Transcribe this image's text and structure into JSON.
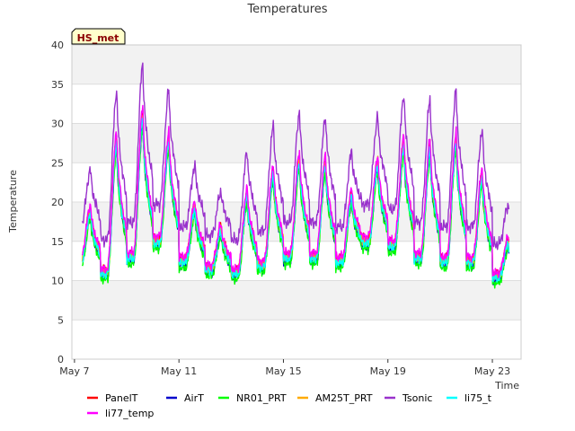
{
  "chart_data": {
    "type": "line",
    "title": "Temperatures",
    "xlabel": "Time",
    "ylabel": "Temperature",
    "badge": "HS_met",
    "ylim": [
      0,
      40
    ],
    "yticks": [
      0,
      5,
      10,
      15,
      20,
      25,
      30,
      35,
      40
    ],
    "xlim_days": [
      6.9,
      24.1
    ],
    "xticks": [
      {
        "label": "May 7",
        "day": 7
      },
      {
        "label": "May 11",
        "day": 11
      },
      {
        "label": "May 15",
        "day": 15
      },
      {
        "label": "May 19",
        "day": 19
      },
      {
        "label": "May 23",
        "day": 23
      }
    ],
    "days": [
      7.3,
      8.0,
      9.0,
      10.0,
      11.0,
      12.0,
      13.0,
      14.0,
      15.0,
      16.0,
      17.0,
      18.0,
      19.0,
      20.0,
      21.0,
      22.0,
      23.0
    ],
    "daily_min": [
      12.5,
      11.0,
      13.0,
      15.0,
      12.5,
      11.5,
      11.0,
      12.0,
      13.0,
      13.0,
      12.5,
      15.0,
      14.5,
      13.0,
      12.5,
      12.5,
      10.5
    ],
    "daily_max": [
      19.0,
      28.0,
      31.0,
      28.0,
      19.5,
      16.5,
      21.0,
      24.0,
      25.5,
      25.0,
      21.0,
      25.0,
      27.5,
      27.0,
      28.0,
      23.5,
      15.0
    ],
    "peak_hour": 15,
    "series": [
      {
        "name": "PanelT",
        "color": "#ff0000",
        "offset": 0.3,
        "scale": 1.0,
        "seed": 1
      },
      {
        "name": "AirT",
        "color": "#0000cc",
        "offset": -0.5,
        "scale": 0.96,
        "seed": 2
      },
      {
        "name": "NR01_PRT",
        "color": "#00ff00",
        "offset": -0.8,
        "scale": 0.97,
        "seed": 3
      },
      {
        "name": "AM25T_PRT",
        "color": "#ffaa00",
        "offset": 0.1,
        "scale": 1.0,
        "seed": 4
      },
      {
        "name": "Tsonic",
        "color": "#9932cc",
        "offset": 4.2,
        "scale": 1.12,
        "seed": 5
      },
      {
        "name": "li75_t",
        "color": "#00ffff",
        "offset": -0.2,
        "scale": 0.99,
        "seed": 6
      },
      {
        "name": "li77_temp",
        "color": "#ff00ff",
        "offset": 0.5,
        "scale": 1.03,
        "seed": 7
      }
    ],
    "legend": {
      "placement": "bottom"
    }
  }
}
